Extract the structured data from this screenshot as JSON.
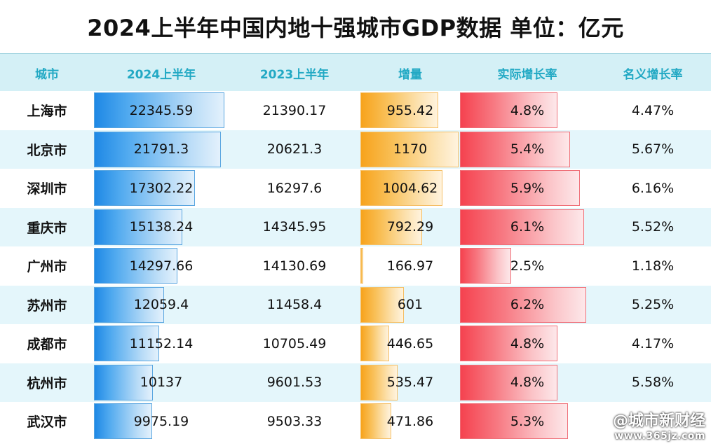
{
  "title": "2024上半年中国内地十强城市GDP数据   单位：亿元",
  "headers": [
    "城市",
    "2024上半年",
    "2023上半年",
    "增量",
    "实际增长率",
    "名义增长率"
  ],
  "chart_data": {
    "type": "table",
    "title": "2024上半年中国内地十强城市GDP数据   单位：亿元",
    "columns": [
      "城市",
      "2024上半年",
      "2023上半年",
      "增量",
      "实际增长率",
      "名义增长率"
    ],
    "rows": [
      {
        "city": "上海市",
        "gdp_2024h1": "22345.59",
        "gdp_2023h1": "21390.17",
        "increase": "955.42",
        "real_growth": "4.8%",
        "nominal_growth": "4.47%",
        "gdp_2024h1_value": 22345.59,
        "increase_value": 955.42,
        "real_growth_value": 4.8
      },
      {
        "city": "北京市",
        "gdp_2024h1": "21791.3",
        "gdp_2023h1": "20621.3",
        "increase": "1170",
        "real_growth": "5.4%",
        "nominal_growth": "5.67%",
        "gdp_2024h1_value": 21791.3,
        "increase_value": 1170,
        "real_growth_value": 5.4
      },
      {
        "city": "深圳市",
        "gdp_2024h1": "17302.22",
        "gdp_2023h1": "16297.6",
        "increase": "1004.62",
        "real_growth": "5.9%",
        "nominal_growth": "6.16%",
        "gdp_2024h1_value": 17302.22,
        "increase_value": 1004.62,
        "real_growth_value": 5.9
      },
      {
        "city": "重庆市",
        "gdp_2024h1": "15138.24",
        "gdp_2023h1": "14345.95",
        "increase": "792.29",
        "real_growth": "6.1%",
        "nominal_growth": "5.52%",
        "gdp_2024h1_value": 15138.24,
        "increase_value": 792.29,
        "real_growth_value": 6.1
      },
      {
        "city": "广州市",
        "gdp_2024h1": "14297.66",
        "gdp_2023h1": "14130.69",
        "increase": "166.97",
        "real_growth": "2.5%",
        "nominal_growth": "1.18%",
        "gdp_2024h1_value": 14297.66,
        "increase_value": 166.97,
        "real_growth_value": 2.5
      },
      {
        "city": "苏州市",
        "gdp_2024h1": "12059.4",
        "gdp_2023h1": "11458.4",
        "increase": "601",
        "real_growth": "6.2%",
        "nominal_growth": "5.25%",
        "gdp_2024h1_value": 12059.4,
        "increase_value": 601,
        "real_growth_value": 6.2
      },
      {
        "city": "成都市",
        "gdp_2024h1": "11152.14",
        "gdp_2023h1": "10705.49",
        "increase": "446.65",
        "real_growth": "4.8%",
        "nominal_growth": "4.17%",
        "gdp_2024h1_value": 11152.14,
        "increase_value": 446.65,
        "real_growth_value": 4.8
      },
      {
        "city": "杭州市",
        "gdp_2024h1": "10137",
        "gdp_2023h1": "9601.53",
        "increase": "535.47",
        "real_growth": "4.8%",
        "nominal_growth": "5.58%",
        "gdp_2024h1_value": 10137,
        "increase_value": 535.47,
        "real_growth_value": 4.8
      },
      {
        "city": "武汉市",
        "gdp_2024h1": "9975.19",
        "gdp_2023h1": "9503.33",
        "increase": "471.86",
        "real_growth": "5.3%",
        "nominal_growth": "",
        "gdp_2024h1_value": 9975.19,
        "increase_value": 471.86,
        "real_growth_value": 5.3
      }
    ],
    "bar_scales": {
      "gdp_2024h1_max": 22345.59,
      "increase_min": 166.97,
      "increase_max": 1170,
      "real_growth_min": 2.5,
      "real_growth_max": 6.2
    },
    "colors": {
      "header_bg": "#d4f0f6",
      "header_text": "#22a9c4",
      "row_alt_bg": "#e4f6fb",
      "gdp_bar": "#1e88e5",
      "increase_bar": "#f7a31c",
      "growth_bar": "#f5424f"
    }
  },
  "watermark": {
    "name": "@城市新财经",
    "url": "www.365jz.com"
  }
}
